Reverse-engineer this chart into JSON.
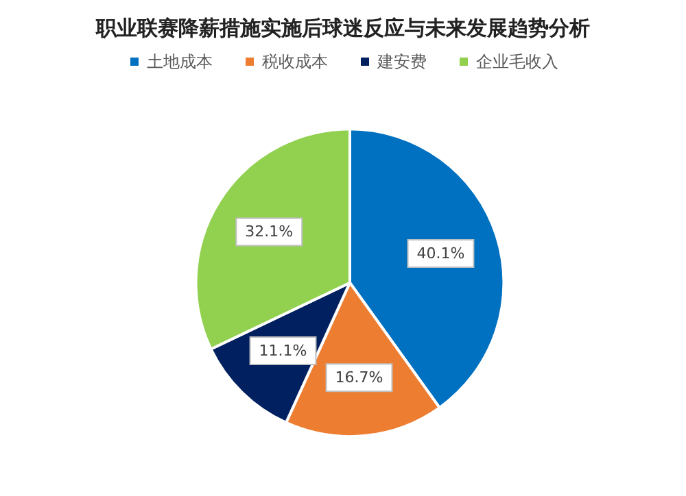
{
  "chart_data": {
    "type": "pie",
    "title": "职业联赛降薪措施实施后球迷反应与未来发展趋势分析",
    "categories": [
      "土地成本",
      "税收成本",
      "建安费",
      "企业毛收入"
    ],
    "values": [
      40.1,
      16.7,
      11.1,
      32.1
    ],
    "value_labels": [
      "40.1%",
      "16.7%",
      "11.1%",
      "32.1%"
    ],
    "colors": [
      "#0070c0",
      "#ed7d31",
      "#002060",
      "#92d050"
    ],
    "legend": "top"
  }
}
